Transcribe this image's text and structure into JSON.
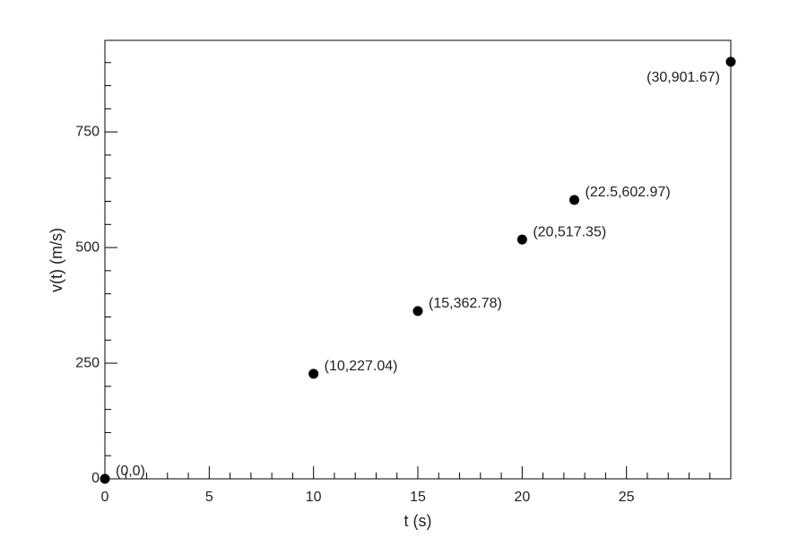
{
  "chart_data": {
    "type": "scatter",
    "x_label": "t (s)",
    "y_label": "v(t) (m/s)",
    "x": [
      0,
      10,
      15,
      20,
      22.5,
      30
    ],
    "values": [
      0,
      227.04,
      362.78,
      517.35,
      602.97,
      901.67
    ],
    "value_labels": [
      "(0,0)",
      "(10,227.04)",
      "(15,362.78)",
      "(20,517.35)",
      "(22.5,602.97)",
      "(30,901.67)"
    ],
    "color": "#000000",
    "xlim": [
      0,
      30
    ],
    "xticks": [
      0,
      5,
      10,
      15,
      20,
      25
    ],
    "xminorticks": [
      1,
      2,
      3,
      4,
      6,
      7,
      8,
      9,
      11,
      12,
      13,
      14,
      16,
      17,
      18,
      19,
      21,
      22,
      23,
      24,
      26,
      27,
      28,
      29
    ],
    "ylim": [
      0,
      948
    ],
    "yticks": [
      0,
      250,
      500,
      750
    ],
    "yminorticks": [
      50,
      100,
      150,
      200,
      300,
      350,
      400,
      450,
      550,
      600,
      650,
      700,
      800,
      850,
      900
    ],
    "grid": false
  }
}
